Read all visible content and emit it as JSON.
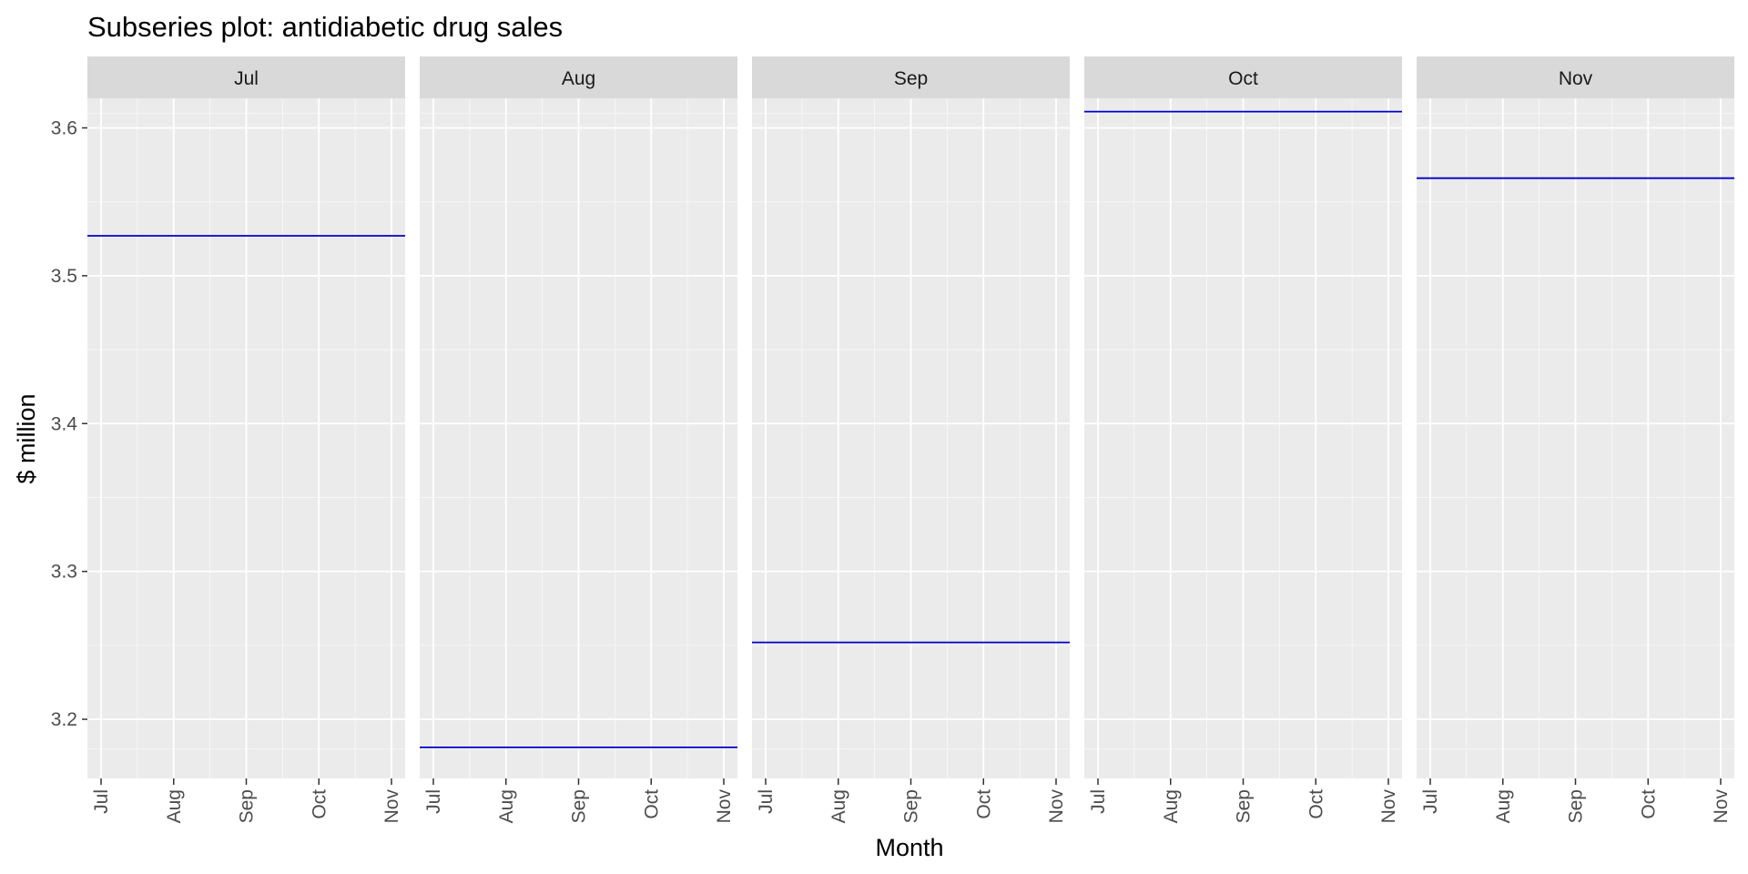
{
  "chart_data": {
    "type": "line",
    "title": "Subseries plot: antidiabetic drug sales",
    "xlabel": "Month",
    "ylabel": "$ million",
    "ylim": [
      3.16,
      3.62
    ],
    "y_ticks": [
      3.2,
      3.3,
      3.4,
      3.5,
      3.6
    ],
    "y_tick_labels": [
      "3.2",
      "3.3",
      "3.4",
      "3.5",
      "3.6"
    ],
    "x_ticks": [
      "Jul",
      "Aug",
      "Sep",
      "Oct",
      "Nov"
    ],
    "grid": true,
    "panels": [
      {
        "label": "Jul",
        "mean": 3.527
      },
      {
        "label": "Aug",
        "mean": 3.181
      },
      {
        "label": "Sep",
        "mean": 3.252
      },
      {
        "label": "Oct",
        "mean": 3.611
      },
      {
        "label": "Nov",
        "mean": 3.566
      }
    ],
    "colors": {
      "panel_background": "#ebebeb",
      "strip_background": "#d9d9d9",
      "grid": "#ffffff",
      "line": "#0000cc",
      "tick_label": "#4d4d4d"
    }
  }
}
